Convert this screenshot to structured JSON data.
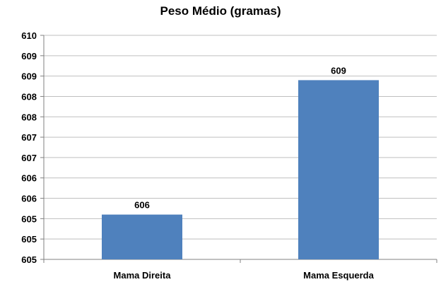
{
  "chart_data": {
    "type": "bar",
    "title": "Peso Médio (gramas)",
    "categories": [
      "Mama Direita",
      "Mama Esquerda"
    ],
    "values": [
      606,
      609
    ],
    "data_labels": [
      "606",
      "609"
    ],
    "y_tick_labels": [
      "610",
      "609",
      "609",
      "608",
      "608",
      "607",
      "607",
      "606",
      "606",
      "605",
      "605",
      "605"
    ],
    "ylim": [
      605,
      610
    ],
    "grid": true,
    "bar_color": "#4f81bd",
    "grid_color": "#bfbfbf"
  }
}
